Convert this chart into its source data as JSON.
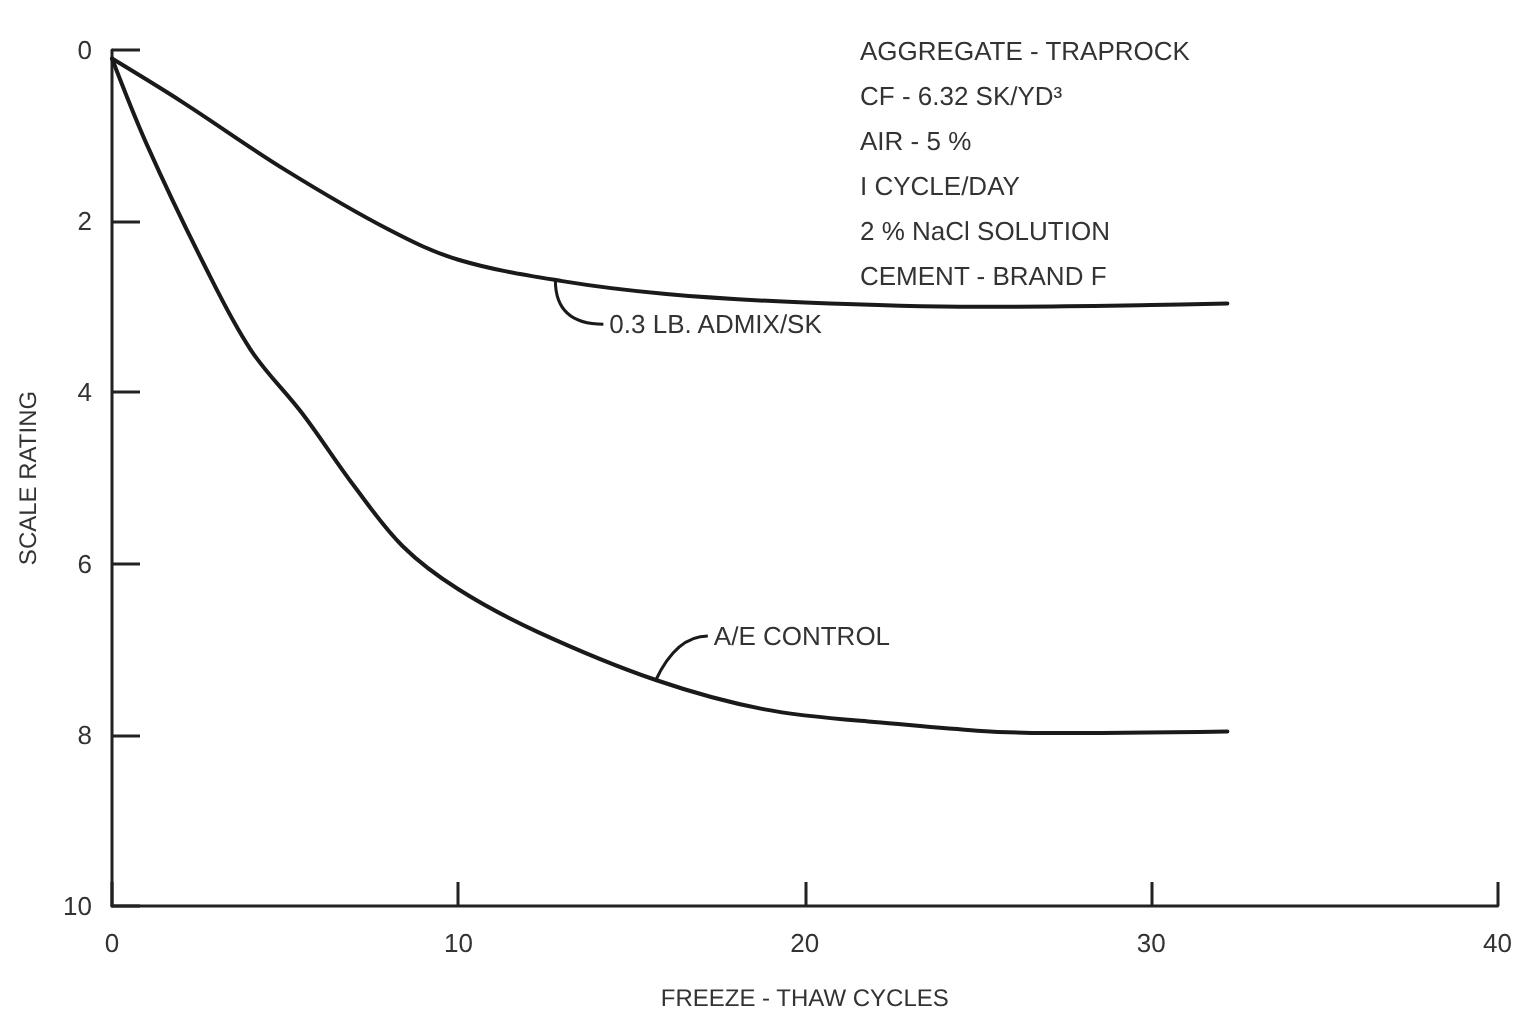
{
  "chart_data": {
    "type": "line",
    "xlabel": "FREEZE - THAW CYCLES",
    "ylabel": "SCALE RATING",
    "xlim": [
      0,
      40
    ],
    "xticks": [
      0,
      10,
      20,
      30,
      40
    ],
    "ylim": [
      10,
      0
    ],
    "yticks": [
      0,
      2,
      4,
      6,
      8,
      10
    ],
    "grid": false,
    "marker": "none",
    "line_style": "solid",
    "series": [
      {
        "color": "#1a1a1a",
        "x": [
          0,
          2,
          5,
          8,
          10,
          13,
          16,
          20,
          25,
          30,
          32.2
        ],
        "values": [
          0.1,
          0.6,
          1.4,
          2.1,
          2.45,
          2.7,
          2.85,
          2.95,
          3.0,
          2.98,
          2.96
        ]
      },
      {
        "color": "#1a1a1a",
        "x": [
          0,
          1,
          2.65,
          4,
          5.5,
          7,
          8.4,
          10,
          12.3,
          15.7,
          18.8,
          22,
          27,
          32.2
        ],
        "values": [
          0.1,
          1.1,
          2.5,
          3.5,
          4.25,
          5.1,
          5.8,
          6.3,
          6.8,
          7.36,
          7.7,
          7.85,
          7.98,
          7.96
        ]
      }
    ],
    "annotations": [
      "AGGREGATE - TRAPROCK",
      "CF - 6.32 SK/YD³",
      "AIR - 5 %",
      "I CYCLE/DAY",
      "2 % NaCl SOLUTION",
      "CEMENT - BRAND F",
      {
        "text": "0.3 LB. ADMIX/SK",
        "x": 12.8,
        "y": 2.69
      },
      {
        "text": "A/E CONTROL",
        "x": 15.7,
        "y": 7.36
      }
    ]
  }
}
